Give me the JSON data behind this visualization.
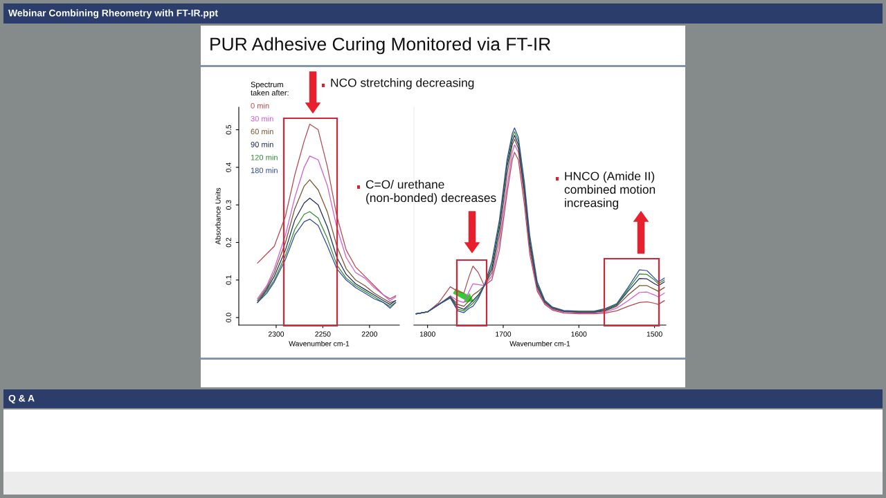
{
  "chart_data": [
    {
      "type": "line",
      "title": "PUR Adhesive Curing Monitored via FT-IR",
      "xlabel": "Wavenumber cm-1",
      "ylabel": "Absorbance Units",
      "legend_title": "Spectrum\ntaken after:",
      "legend": "top left",
      "grid": false,
      "marker": "none",
      "line_style": "solid",
      "annotations": [
        "Webinar Combining Rheometry with FT-IR.ppt",
        "Q & A",
        "NCO stretching decreasing"
      ],
      "xlim": [
        2340,
        2168
      ],
      "xticks": [
        2300,
        2250,
        2200
      ],
      "ylim": [
        -0.02,
        0.56
      ],
      "yticks": [
        {
          "value": 0,
          "label": "0.0"
        },
        {
          "value": 0.1,
          "label": "0.1"
        },
        {
          "value": 0.2,
          "label": "0.2"
        },
        {
          "value": 0.3,
          "label": "0.3"
        },
        {
          "value": 0.4,
          "label": "0.4"
        },
        {
          "value": 0.5,
          "label": "0.5"
        }
      ],
      "x": [
        2320,
        2310,
        2302,
        2290,
        2280,
        2270,
        2264,
        2255,
        2245,
        2235,
        2225,
        2215,
        2205,
        2195,
        2185,
        2178,
        2172
      ],
      "series": [
        {
          "name": "0 min",
          "color": "#b5484f",
          "values": [
            0.145,
            0.17,
            0.19,
            0.27,
            0.38,
            0.47,
            0.515,
            0.5,
            0.4,
            0.27,
            0.18,
            0.135,
            0.11,
            0.085,
            0.06,
            0.05,
            0.058
          ]
        },
        {
          "name": "30 min",
          "color": "#d35ad3",
          "values": [
            0.05,
            0.085,
            0.13,
            0.22,
            0.32,
            0.4,
            0.43,
            0.42,
            0.35,
            0.24,
            0.16,
            0.12,
            0.105,
            0.08,
            0.06,
            0.045,
            0.055
          ]
        },
        {
          "name": "60 min",
          "color": "#7a5230",
          "values": [
            0.045,
            0.08,
            0.12,
            0.2,
            0.29,
            0.35,
            0.367,
            0.34,
            0.28,
            0.19,
            0.13,
            0.1,
            0.085,
            0.065,
            0.05,
            0.04,
            0.045
          ]
        },
        {
          "name": "90 min",
          "color": "#1f2a5a",
          "values": [
            0.04,
            0.075,
            0.11,
            0.18,
            0.26,
            0.305,
            0.318,
            0.3,
            0.24,
            0.16,
            0.115,
            0.09,
            0.075,
            0.06,
            0.045,
            0.035,
            0.045
          ]
        },
        {
          "name": "120 min",
          "color": "#2e8b2e",
          "values": [
            0.04,
            0.07,
            0.1,
            0.165,
            0.235,
            0.275,
            0.282,
            0.265,
            0.21,
            0.14,
            0.105,
            0.085,
            0.07,
            0.055,
            0.04,
            0.03,
            0.04
          ]
        },
        {
          "name": "180 min",
          "color": "#2f4aa0",
          "values": [
            0.04,
            0.065,
            0.095,
            0.155,
            0.22,
            0.255,
            0.262,
            0.245,
            0.19,
            0.13,
            0.1,
            0.08,
            0.065,
            0.05,
            0.04,
            0.025,
            0.04
          ]
        }
      ]
    },
    {
      "type": "line",
      "xlabel": "Wavenumber cm-1",
      "grid": false,
      "marker": "none",
      "line_style": "solid",
      "tick_labels": "x",
      "annotations": [
        "C=O/ urethane\n(non-bonded) decreases",
        "HNCO (Amide II)\ncombined motion\nincreasing"
      ],
      "xlim": [
        1818,
        1485
      ],
      "xticks": [
        1800,
        1700,
        1600,
        1500
      ],
      "ylim": [
        -0.02,
        0.56
      ],
      "x": [
        1815,
        1800,
        1785,
        1770,
        1760,
        1752,
        1745,
        1740,
        1733,
        1725,
        1715,
        1705,
        1695,
        1688,
        1685,
        1680,
        1672,
        1665,
        1655,
        1645,
        1635,
        1620,
        1600,
        1580,
        1565,
        1550,
        1535,
        1520,
        1510,
        1500,
        1495,
        1487
      ],
      "series": [
        {
          "color": "#b5484f",
          "values": [
            0.01,
            0.015,
            0.04,
            0.082,
            0.07,
            0.065,
            0.11,
            0.137,
            0.12,
            0.085,
            0.1,
            0.18,
            0.33,
            0.42,
            0.44,
            0.42,
            0.3,
            0.17,
            0.07,
            0.035,
            0.02,
            0.012,
            0.01,
            0.01,
            0.012,
            0.018,
            0.03,
            0.04,
            0.042,
            0.038,
            0.035,
            0.045
          ]
        },
        {
          "color": "#d35ad3",
          "values": [
            0.01,
            0.015,
            0.035,
            0.058,
            0.045,
            0.04,
            0.07,
            0.09,
            0.088,
            0.085,
            0.11,
            0.2,
            0.35,
            0.44,
            0.46,
            0.44,
            0.32,
            0.18,
            0.075,
            0.037,
            0.022,
            0.014,
            0.012,
            0.012,
            0.015,
            0.025,
            0.045,
            0.067,
            0.068,
            0.06,
            0.055,
            0.065
          ]
        },
        {
          "color": "#7a5230",
          "values": [
            0.01,
            0.015,
            0.035,
            0.056,
            0.035,
            0.03,
            0.045,
            0.06,
            0.07,
            0.085,
            0.12,
            0.22,
            0.38,
            0.46,
            0.475,
            0.45,
            0.33,
            0.19,
            0.08,
            0.04,
            0.024,
            0.016,
            0.014,
            0.014,
            0.018,
            0.03,
            0.06,
            0.085,
            0.085,
            0.075,
            0.07,
            0.08
          ]
        },
        {
          "color": "#1f2a5a",
          "values": [
            0.01,
            0.015,
            0.035,
            0.055,
            0.028,
            0.022,
            0.035,
            0.045,
            0.06,
            0.085,
            0.13,
            0.24,
            0.4,
            0.47,
            0.485,
            0.46,
            0.34,
            0.2,
            0.085,
            0.042,
            0.026,
            0.017,
            0.015,
            0.015,
            0.02,
            0.033,
            0.07,
            0.104,
            0.103,
            0.09,
            0.085,
            0.095
          ]
        },
        {
          "color": "#2e8b2e",
          "values": [
            0.01,
            0.015,
            0.035,
            0.054,
            0.022,
            0.018,
            0.03,
            0.038,
            0.055,
            0.085,
            0.14,
            0.25,
            0.41,
            0.48,
            0.495,
            0.47,
            0.35,
            0.21,
            0.09,
            0.044,
            0.027,
            0.018,
            0.016,
            0.016,
            0.022,
            0.035,
            0.075,
            0.116,
            0.115,
            0.1,
            0.09,
            0.1
          ]
        },
        {
          "color": "#2f4aa0",
          "values": [
            0.01,
            0.015,
            0.035,
            0.052,
            0.018,
            0.013,
            0.025,
            0.03,
            0.05,
            0.085,
            0.15,
            0.26,
            0.42,
            0.49,
            0.505,
            0.48,
            0.36,
            0.22,
            0.095,
            0.046,
            0.028,
            0.019,
            0.017,
            0.017,
            0.024,
            0.037,
            0.08,
            0.127,
            0.125,
            0.105,
            0.095,
            0.105
          ]
        }
      ]
    }
  ]
}
